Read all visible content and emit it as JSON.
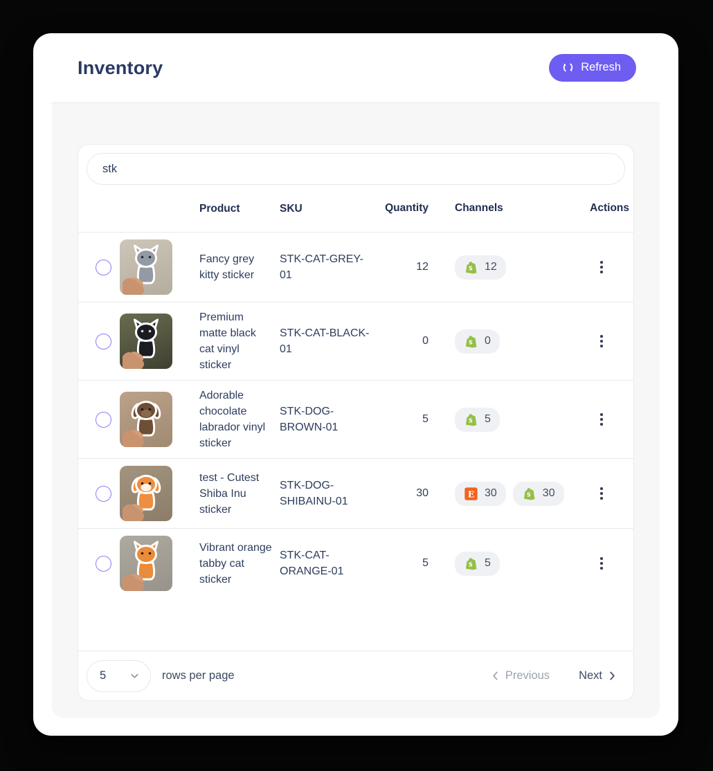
{
  "page": {
    "title": "Inventory"
  },
  "header": {
    "refresh_label": "Refresh"
  },
  "search": {
    "value": "stk"
  },
  "table": {
    "columns": {
      "product": "Product",
      "sku": "SKU",
      "quantity": "Quantity",
      "channels": "Channels",
      "actions": "Actions"
    },
    "rows": [
      {
        "product": "Fancy grey kitty sticker",
        "sku": "STK-CAT-GREY-01",
        "quantity": "12",
        "channels": [
          {
            "name": "shopify",
            "count": "12"
          }
        ],
        "image": {
          "animal": "cat",
          "color": "#949aa4",
          "eyes": "#23293a",
          "bg": "#cdc6b8",
          "bg2": "#b4ad9e"
        }
      },
      {
        "product": "Premium matte black cat vinyl sticker",
        "sku": "STK-CAT-BLACK-01",
        "quantity": "0",
        "channels": [
          {
            "name": "shopify",
            "count": "0"
          }
        ],
        "image": {
          "animal": "cat",
          "color": "#1b1c22",
          "eyes": "#d8d9df",
          "bg": "#6a6c50",
          "bg2": "#3f4030"
        }
      },
      {
        "product": "Adorable chocolate labrador vinyl sticker",
        "sku": "STK-DOG-BROWN-01",
        "quantity": "5",
        "channels": [
          {
            "name": "shopify",
            "count": "5"
          }
        ],
        "image": {
          "animal": "dog",
          "color": "#6f4e36",
          "eyes": "#241a12",
          "muzzle": "#8a6a4e",
          "bg": "#bba289",
          "bg2": "#a08a72"
        }
      },
      {
        "product": "test - Cutest Shiba Inu sticker",
        "sku": "STK-DOG-SHIBAINU-01",
        "quantity": "30",
        "channels": [
          {
            "name": "etsy",
            "count": "30"
          },
          {
            "name": "shopify",
            "count": "30"
          }
        ],
        "image": {
          "animal": "dog",
          "color": "#ee8e3e",
          "eyes": "#2b1d10",
          "muzzle": "#fdf4e8",
          "bg": "#a3947f",
          "bg2": "#8b7d69"
        }
      },
      {
        "product": "Vibrant orange tabby cat sticker",
        "sku": "STK-CAT-ORANGE-01",
        "quantity": "5",
        "channels": [
          {
            "name": "shopify",
            "count": "5"
          }
        ],
        "image": {
          "animal": "cat",
          "color": "#ea8c3a",
          "eyes": "#2b1d10",
          "bg": "#aeaaa0",
          "bg2": "#97938a"
        }
      }
    ]
  },
  "footer": {
    "rows_per_page_value": "5",
    "rows_per_page_label": "rows per page",
    "previous_label": "Previous",
    "next_label": "Next"
  },
  "colors": {
    "accent_purple": "#6d5df0",
    "shopify_green": "#95bf47",
    "etsy_orange": "#f1641e",
    "badge_bg": "#f0f1f4",
    "title_navy": "#2b3a64",
    "hand_skin": "#c9936f"
  }
}
